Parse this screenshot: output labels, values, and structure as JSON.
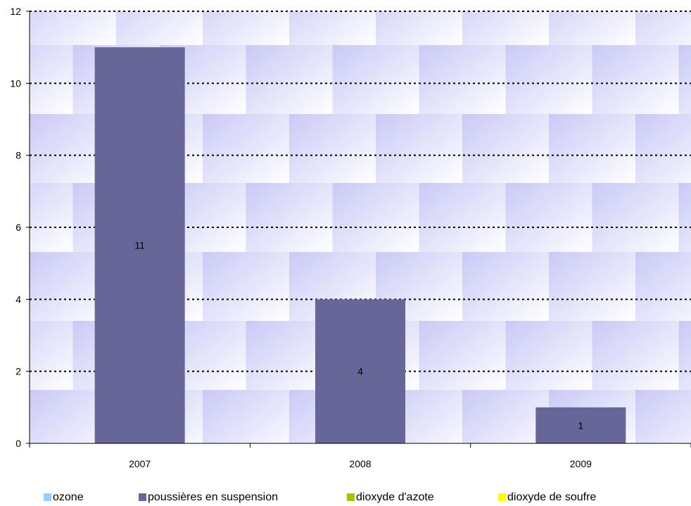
{
  "chart_data": {
    "type": "bar",
    "title": "",
    "xlabel": "",
    "ylabel": "",
    "categories": [
      "2007",
      "2008",
      "2009"
    ],
    "ylim": [
      0,
      12
    ],
    "yticks": [
      0,
      2,
      4,
      6,
      8,
      10,
      12
    ],
    "grid": true,
    "legend_position": "bottom",
    "series": [
      {
        "name": "ozone",
        "color": "#99ccff",
        "values": [
          0,
          0,
          0
        ]
      },
      {
        "name": "poussières en suspension",
        "color": "#666699",
        "values": [
          11,
          4,
          1
        ]
      },
      {
        "name": "dioxyde d'azote",
        "color": "#99cc00",
        "values": [
          0,
          0,
          0
        ]
      },
      {
        "name": "dioxyde de soufre",
        "color": "#ffff00",
        "values": [
          0,
          0,
          0
        ]
      }
    ],
    "data_labels": [
      "11",
      "4",
      "1"
    ]
  }
}
